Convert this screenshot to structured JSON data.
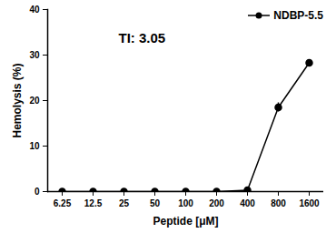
{
  "chart_data": {
    "type": "line",
    "x_label": "Peptide [μM]",
    "y_label": "Hemolysis (%)",
    "categories": [
      "6.25",
      "12.5",
      "25",
      "50",
      "100",
      "200",
      "400",
      "800",
      "1600"
    ],
    "series": [
      {
        "name": "NDBP-5.5",
        "color": "#000000",
        "marker": "circle",
        "line_style": "solid",
        "values": [
          0,
          0,
          0,
          0,
          0,
          0,
          0.3,
          18.5,
          28.3
        ],
        "errors": [
          0,
          0,
          0,
          0,
          0,
          0,
          0.3,
          1,
          0.6
        ]
      }
    ],
    "annotations": [
      {
        "text": "TI: 3.05"
      }
    ],
    "ylim": [
      0,
      40
    ],
    "yticks": [
      0,
      10,
      20,
      30,
      40
    ],
    "grid": false,
    "legend": "top-right"
  }
}
